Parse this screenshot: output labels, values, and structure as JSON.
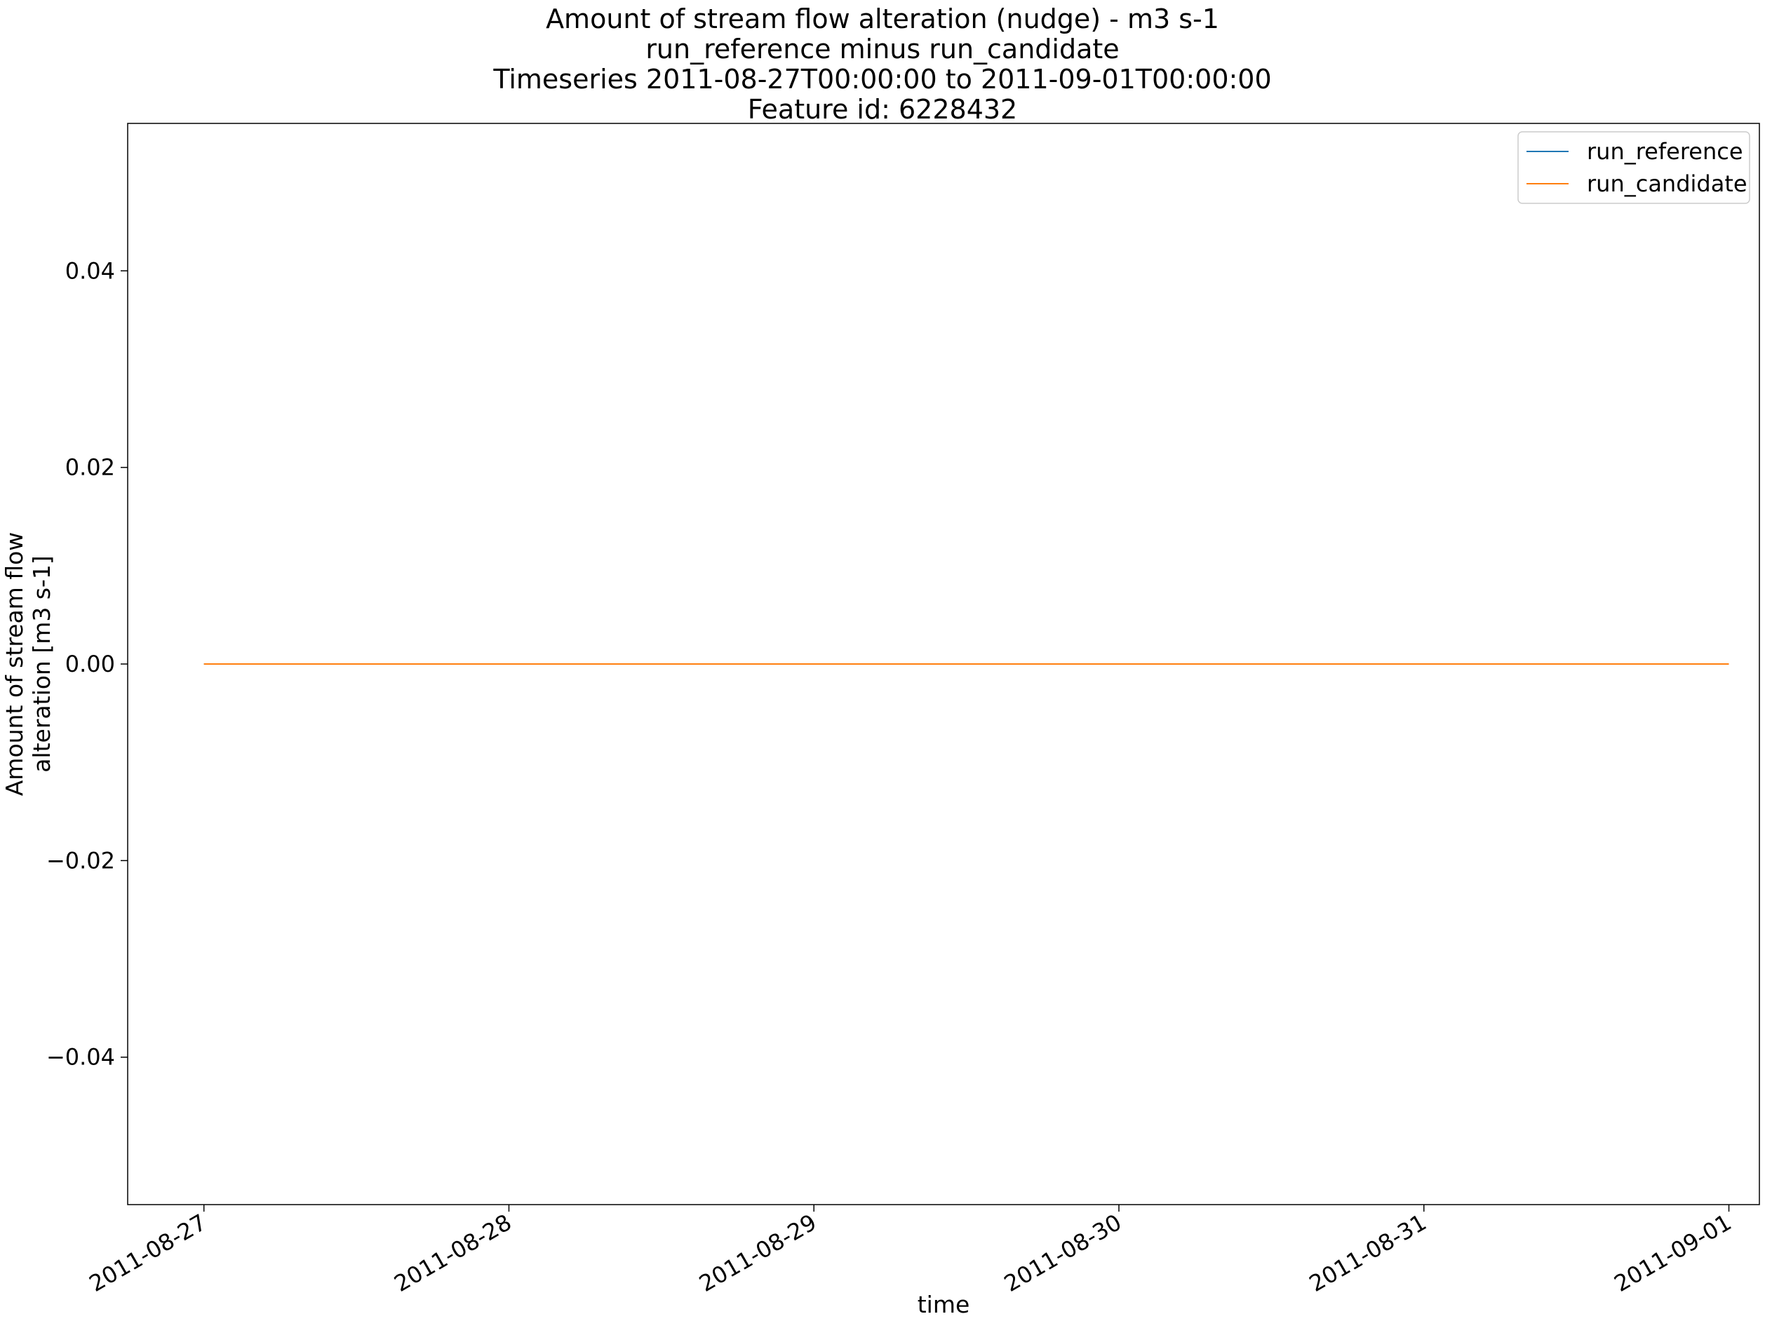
{
  "chart_data": {
    "type": "line",
    "title_lines": [
      "Amount of stream flow alteration (nudge) - m3 s-1",
      "run_reference minus run_candidate",
      "Timeseries 2011-08-27T00:00:00 to 2011-09-01T00:00:00",
      "Feature id: 6228432"
    ],
    "xlabel": "time",
    "ylabel_lines": [
      "Amount of stream flow",
      "alteration [m3 s-1]"
    ],
    "x_ticks": [
      "2011-08-27",
      "2011-08-28",
      "2011-08-29",
      "2011-08-30",
      "2011-08-31",
      "2011-09-01"
    ],
    "y_ticks": [
      {
        "value": 0.04,
        "label": "0.04"
      },
      {
        "value": 0.02,
        "label": "0.02"
      },
      {
        "value": 0.0,
        "label": "0.00"
      },
      {
        "value": -0.02,
        "label": "−0.02"
      },
      {
        "value": -0.04,
        "label": "−0.04"
      }
    ],
    "xlim": [
      "2011-08-26T18:00:00",
      "2011-09-01T02:24:00"
    ],
    "ylim": [
      -0.055,
      0.055
    ],
    "grid": false,
    "legend_position": "top-right",
    "series": [
      {
        "name": "run_reference",
        "color": "#1f77b4",
        "points": [
          {
            "x": "2011-08-27T00:00:00",
            "y": 0.0
          },
          {
            "x": "2011-08-28T00:00:00",
            "y": 0.0
          },
          {
            "x": "2011-08-29T00:00:00",
            "y": 0.0
          },
          {
            "x": "2011-08-30T00:00:00",
            "y": 0.0
          },
          {
            "x": "2011-08-31T00:00:00",
            "y": 0.0
          },
          {
            "x": "2011-09-01T00:00:00",
            "y": 0.0
          }
        ]
      },
      {
        "name": "run_candidate",
        "color": "#ff7f0e",
        "points": [
          {
            "x": "2011-08-27T00:00:00",
            "y": 0.0
          },
          {
            "x": "2011-08-28T00:00:00",
            "y": 0.0
          },
          {
            "x": "2011-08-29T00:00:00",
            "y": 0.0
          },
          {
            "x": "2011-08-30T00:00:00",
            "y": 0.0
          },
          {
            "x": "2011-08-31T00:00:00",
            "y": 0.0
          },
          {
            "x": "2011-09-01T00:00:00",
            "y": 0.0
          }
        ]
      }
    ]
  }
}
